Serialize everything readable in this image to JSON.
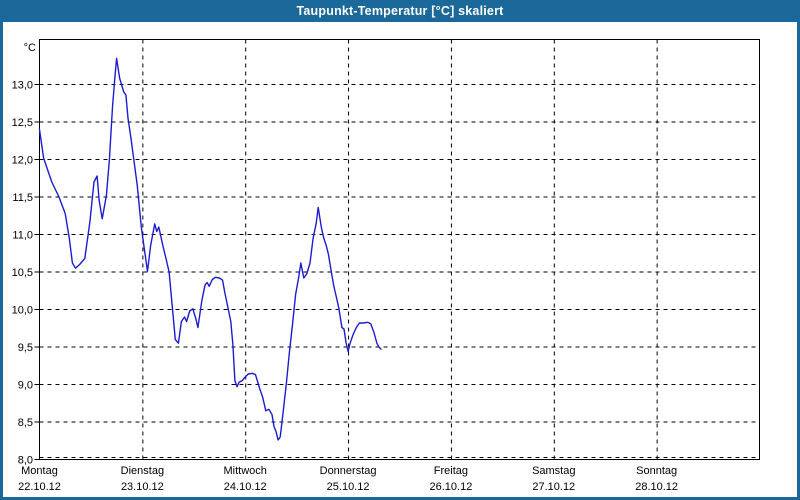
{
  "window": {
    "title": "Taupunkt-Temperatur [°C] skaliert"
  },
  "colors": {
    "titlebar": "#1b689b",
    "window_border": "#1b689b",
    "line": "#1c1cd0",
    "grid": "#000000",
    "axis": "#000000",
    "background": "#ffffff"
  },
  "chart_data": {
    "type": "line",
    "title": "Taupunkt-Temperatur [°C] skaliert",
    "y_unit": "°C",
    "ylim": [
      8.0,
      13.6
    ],
    "yticks": [
      {
        "value": 8.0,
        "label": "8,0"
      },
      {
        "value": 8.5,
        "label": "8,5"
      },
      {
        "value": 9.0,
        "label": "9,0"
      },
      {
        "value": 9.5,
        "label": "9,5"
      },
      {
        "value": 10.0,
        "label": "10,0"
      },
      {
        "value": 10.5,
        "label": "10,5"
      },
      {
        "value": 11.0,
        "label": "11,0"
      },
      {
        "value": 11.5,
        "label": "11,5"
      },
      {
        "value": 12.0,
        "label": "12,0"
      },
      {
        "value": 12.5,
        "label": "12,5"
      },
      {
        "value": 13.0,
        "label": "13,0"
      }
    ],
    "x_days": [
      {
        "name": "Montag",
        "date": "22.10.12"
      },
      {
        "name": "Dienstag",
        "date": "23.10.12"
      },
      {
        "name": "Mittwoch",
        "date": "24.10.12"
      },
      {
        "name": "Donnerstag",
        "date": "25.10.12"
      },
      {
        "name": "Freitag",
        "date": "26.10.12"
      },
      {
        "name": "Samstag",
        "date": "27.10.12"
      },
      {
        "name": "Sonntag",
        "date": "28.10.12"
      }
    ],
    "x_range_days": [
      0,
      7
    ],
    "grid": "dashed",
    "legend": "none",
    "series": [
      {
        "name": "Taupunkt",
        "x_unit": "days (0 = Montag 22.10.12 00:00)",
        "points": [
          [
            0.0,
            12.4
          ],
          [
            0.04,
            12.02
          ],
          [
            0.12,
            11.7
          ],
          [
            0.19,
            11.5
          ],
          [
            0.25,
            11.28
          ],
          [
            0.29,
            10.95
          ],
          [
            0.32,
            10.62
          ],
          [
            0.35,
            10.55
          ],
          [
            0.39,
            10.6
          ],
          [
            0.44,
            10.68
          ],
          [
            0.49,
            11.17
          ],
          [
            0.53,
            11.7
          ],
          [
            0.56,
            11.78
          ],
          [
            0.58,
            11.45
          ],
          [
            0.61,
            11.21
          ],
          [
            0.65,
            11.52
          ],
          [
            0.68,
            12.0
          ],
          [
            0.71,
            12.7
          ],
          [
            0.73,
            13.05
          ],
          [
            0.75,
            13.35
          ],
          [
            0.78,
            13.08
          ],
          [
            0.82,
            12.9
          ],
          [
            0.84,
            12.86
          ],
          [
            0.86,
            12.55
          ],
          [
            0.89,
            12.28
          ],
          [
            0.92,
            11.97
          ],
          [
            0.95,
            11.66
          ],
          [
            0.99,
            11.1
          ],
          [
            1.02,
            10.8
          ],
          [
            1.05,
            10.51
          ],
          [
            1.08,
            10.85
          ],
          [
            1.12,
            11.14
          ],
          [
            1.14,
            11.04
          ],
          [
            1.16,
            11.1
          ],
          [
            1.2,
            10.85
          ],
          [
            1.23,
            10.68
          ],
          [
            1.26,
            10.5
          ],
          [
            1.29,
            10.05
          ],
          [
            1.32,
            9.6
          ],
          [
            1.35,
            9.55
          ],
          [
            1.38,
            9.84
          ],
          [
            1.41,
            9.9
          ],
          [
            1.43,
            9.84
          ],
          [
            1.46,
            9.98
          ],
          [
            1.49,
            10.01
          ],
          [
            1.52,
            9.88
          ],
          [
            1.54,
            9.76
          ],
          [
            1.58,
            10.13
          ],
          [
            1.61,
            10.33
          ],
          [
            1.63,
            10.36
          ],
          [
            1.65,
            10.31
          ],
          [
            1.68,
            10.4
          ],
          [
            1.71,
            10.43
          ],
          [
            1.75,
            10.42
          ],
          [
            1.78,
            10.39
          ],
          [
            1.8,
            10.24
          ],
          [
            1.83,
            10.04
          ],
          [
            1.86,
            9.84
          ],
          [
            1.88,
            9.53
          ],
          [
            1.9,
            9.05
          ],
          [
            1.92,
            8.97
          ],
          [
            1.94,
            9.03
          ],
          [
            1.97,
            9.05
          ],
          [
            2.0,
            9.1
          ],
          [
            2.03,
            9.14
          ],
          [
            2.07,
            9.15
          ],
          [
            2.1,
            9.13
          ],
          [
            2.14,
            8.95
          ],
          [
            2.17,
            8.83
          ],
          [
            2.2,
            8.65
          ],
          [
            2.23,
            8.67
          ],
          [
            2.26,
            8.6
          ],
          [
            2.28,
            8.44
          ],
          [
            2.3,
            8.37
          ],
          [
            2.32,
            8.26
          ],
          [
            2.34,
            8.3
          ],
          [
            2.37,
            8.65
          ],
          [
            2.4,
            9.02
          ],
          [
            2.43,
            9.43
          ],
          [
            2.46,
            9.8
          ],
          [
            2.49,
            10.2
          ],
          [
            2.52,
            10.43
          ],
          [
            2.54,
            10.62
          ],
          [
            2.57,
            10.42
          ],
          [
            2.6,
            10.48
          ],
          [
            2.63,
            10.62
          ],
          [
            2.66,
            10.95
          ],
          [
            2.69,
            11.15
          ],
          [
            2.71,
            11.36
          ],
          [
            2.74,
            11.1
          ],
          [
            2.76,
            10.97
          ],
          [
            2.79,
            10.84
          ],
          [
            2.81,
            10.73
          ],
          [
            2.84,
            10.48
          ],
          [
            2.86,
            10.32
          ],
          [
            2.89,
            10.14
          ],
          [
            2.91,
            10.02
          ],
          [
            2.94,
            9.76
          ],
          [
            2.96,
            9.74
          ],
          [
            2.98,
            9.56
          ],
          [
            3.0,
            9.44
          ],
          [
            3.02,
            9.55
          ],
          [
            3.05,
            9.67
          ],
          [
            3.08,
            9.76
          ],
          [
            3.11,
            9.82
          ],
          [
            3.15,
            9.82
          ],
          [
            3.19,
            9.83
          ],
          [
            3.22,
            9.81
          ],
          [
            3.25,
            9.7
          ],
          [
            3.28,
            9.55
          ],
          [
            3.3,
            9.5
          ],
          [
            3.32,
            9.47
          ]
        ]
      }
    ]
  }
}
